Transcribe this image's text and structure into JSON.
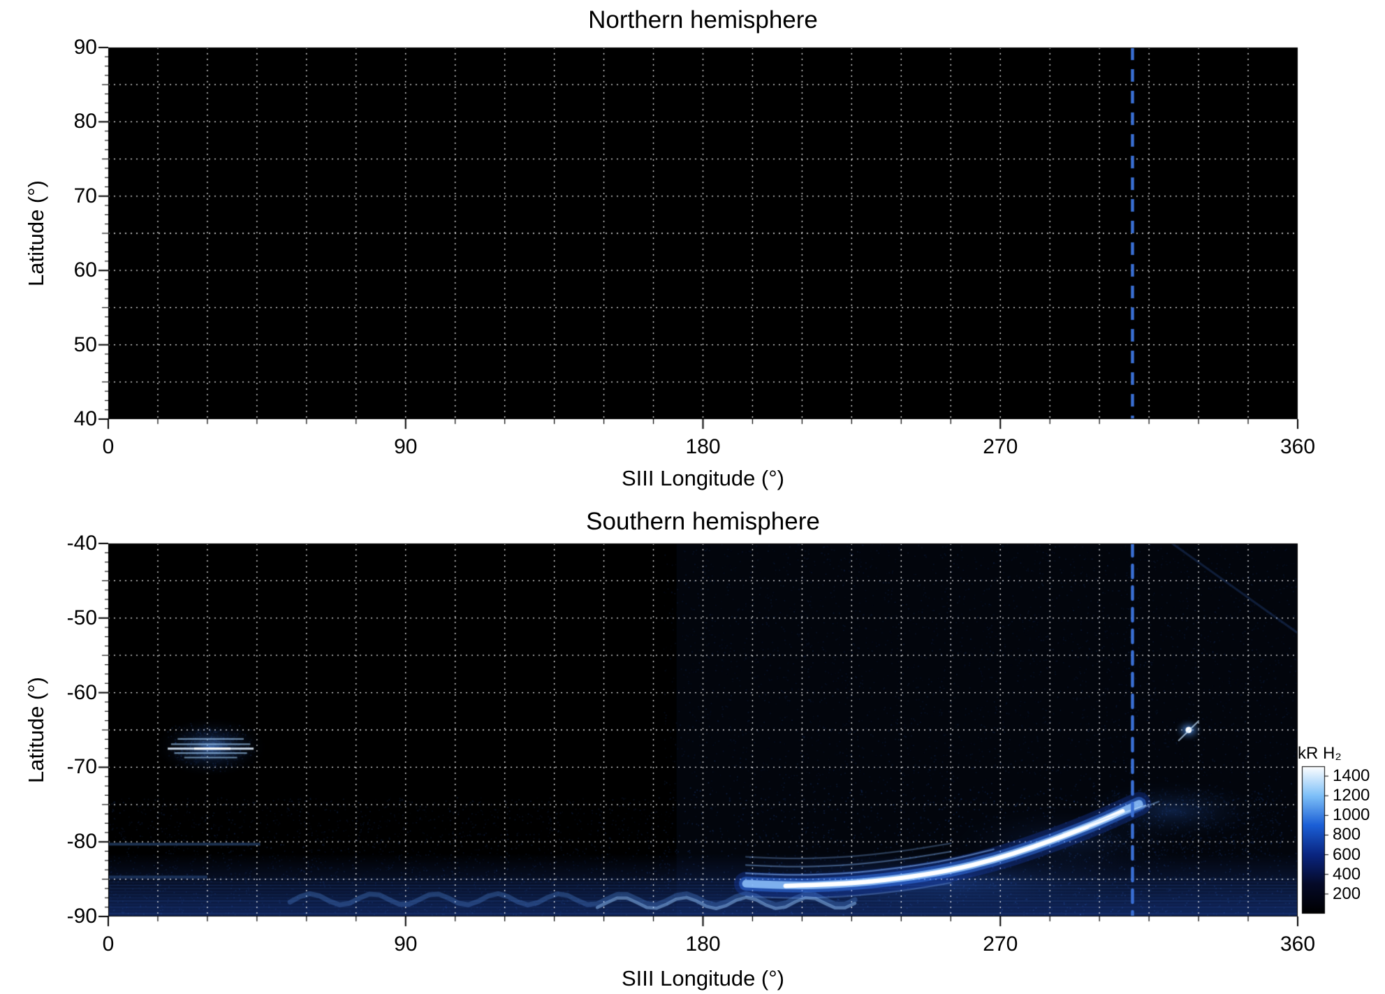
{
  "figure": {
    "background_color": "#ffffff",
    "marker_longitude_deg": 310,
    "marker_line_color": "#3a6fd4",
    "grid_color": "#ffffff"
  },
  "chart_data": [
    {
      "type": "heatmap",
      "title": "Northern hemisphere",
      "xlabel": "SIII Longitude (°)",
      "ylabel": "Latitude (°)",
      "xlim": [
        0,
        360
      ],
      "ylim": [
        40,
        90
      ],
      "xticks": [
        0,
        90,
        180,
        270,
        360
      ],
      "yticks": [
        90,
        80,
        70,
        60,
        50,
        40
      ],
      "grid": {
        "x_step_deg": 15,
        "y_step_deg": 5,
        "style": "dotted"
      },
      "background": "#000000",
      "vertical_marker_deg": 310,
      "features": []
    },
    {
      "type": "heatmap",
      "title": "Southern hemisphere",
      "xlabel": "SIII Longitude (°)",
      "ylabel": "Latitude (°)",
      "xlim": [
        0,
        360
      ],
      "ylim": [
        -90,
        -40
      ],
      "xticks": [
        0,
        90,
        180,
        270,
        360
      ],
      "yticks": [
        -40,
        -50,
        -60,
        -70,
        -80,
        -90
      ],
      "grid": {
        "x_step_deg": 15,
        "y_step_deg": 5,
        "style": "dotted"
      },
      "background": "#000000",
      "vertical_marker_deg": 310,
      "features": [
        {
          "id": "secondary-emission-patch",
          "kind": "patch",
          "center_deg": [
            31,
            -67.3
          ],
          "extent_deg": [
            30,
            6.5
          ],
          "peak_kR": 1000,
          "striations": [
            {
              "lat": -66.2,
              "lon_range": [
                21,
                41
              ]
            },
            {
              "lat": -66.9,
              "lon_range": [
                19,
                43
              ]
            },
            {
              "lat": -67.5,
              "lon_range": [
                18,
                44
              ]
            },
            {
              "lat": -68.1,
              "lon_range": [
                20,
                42
              ]
            },
            {
              "lat": -68.7,
              "lon_range": [
                23,
                39
              ]
            }
          ]
        },
        {
          "id": "main-auroral-arc",
          "kind": "arc",
          "peak_kR": 1500,
          "path_deg": [
            [
              193,
              -85.6
            ],
            [
              205,
              -85.9
            ],
            [
              222,
              -85.7
            ],
            [
              240,
              -84.9
            ],
            [
              255,
              -83.8
            ],
            [
              268,
              -82.4
            ],
            [
              280,
              -80.7
            ],
            [
              291,
              -78.9
            ],
            [
              300,
              -77.3
            ],
            [
              307,
              -75.9
            ],
            [
              312,
              -74.9
            ]
          ],
          "core_lon_range": [
            203,
            310
          ]
        },
        {
          "id": "isolated-spot",
          "kind": "spot",
          "center_deg": [
            327,
            -65
          ],
          "peak_kR": 1300
        },
        {
          "id": "polar-wavy-band",
          "kind": "band",
          "lat": -87.7,
          "lon_range": [
            55,
            228
          ],
          "peak_kR": 450
        },
        {
          "id": "upper-right-boundary",
          "kind": "edge",
          "from_deg": [
            322,
            -40
          ],
          "to_deg": [
            360,
            -52
          ],
          "peak_kR": 200
        }
      ],
      "colorbar": {
        "label": "kR H₂",
        "ticks": [
          1400,
          1200,
          1000,
          800,
          600,
          400,
          200
        ],
        "value_range": [
          0,
          1500
        ],
        "gradient": [
          "#000000",
          "#050a28",
          "#0a2580",
          "#1b5fd6",
          "#7ec0f8",
          "#ffffff"
        ]
      }
    }
  ]
}
